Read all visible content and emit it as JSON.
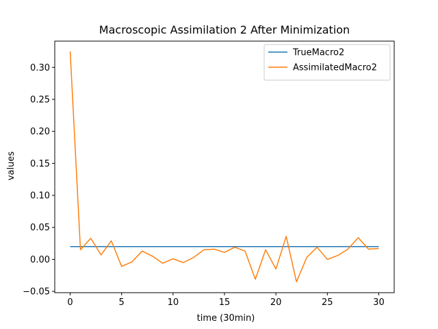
{
  "chart_data": {
    "type": "line",
    "title": "Macroscopic Assimilation 2 After Minimization",
    "xlabel": "time (30min)",
    "ylabel": "values",
    "xlim": [
      -1.5,
      31.5
    ],
    "ylim": [
      -0.052,
      0.341
    ],
    "xticks": [
      0,
      5,
      10,
      15,
      20,
      25,
      30
    ],
    "xtick_labels": [
      "0",
      "5",
      "10",
      "15",
      "20",
      "25",
      "30"
    ],
    "yticks": [
      -0.05,
      0.0,
      0.05,
      0.1,
      0.15,
      0.2,
      0.25,
      0.3
    ],
    "ytick_labels": [
      "−0.05",
      "0.00",
      "0.05",
      "0.10",
      "0.15",
      "0.20",
      "0.25",
      "0.30"
    ],
    "grid": false,
    "legend_position": "top-right",
    "series": [
      {
        "name": "TrueMacro2",
        "color": "#1f77b4",
        "x": [
          0,
          30
        ],
        "y": [
          0.02,
          0.02
        ]
      },
      {
        "name": "AssimilatedMacro2",
        "color": "#ff7f0e",
        "x": [
          0,
          1,
          2,
          3,
          4,
          5,
          6,
          7,
          8,
          9,
          10,
          11,
          12,
          13,
          14,
          15,
          16,
          17,
          18,
          19,
          20,
          21,
          22,
          23,
          24,
          25,
          26,
          27,
          28,
          29,
          30
        ],
        "y": [
          0.325,
          0.015,
          0.033,
          0.007,
          0.029,
          -0.011,
          -0.004,
          0.013,
          0.005,
          -0.006,
          0.001,
          -0.005,
          0.003,
          0.015,
          0.016,
          0.011,
          0.019,
          0.013,
          -0.031,
          0.015,
          -0.015,
          0.036,
          -0.035,
          0.003,
          0.019,
          0.0,
          0.006,
          0.016,
          0.034,
          0.016,
          0.017
        ]
      }
    ]
  }
}
